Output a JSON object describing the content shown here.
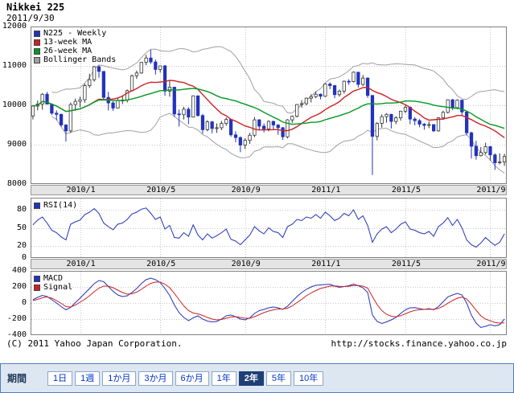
{
  "header": {
    "title": "Nikkei 225",
    "date": "2011/9/30"
  },
  "footer": {
    "copyright": "(C) 2011 Yahoo Japan Corporation.",
    "url": "http://stocks.finance.yahoo.co.jp"
  },
  "period_bar": {
    "label": "期間",
    "options": [
      "1日",
      "1週",
      "1か月",
      "3か月",
      "6か月",
      "1年",
      "2年",
      "5年",
      "10年"
    ],
    "selected": "2年"
  },
  "colors": {
    "candle_blue": "#2233bb",
    "ma13_red": "#cc2222",
    "ma26_green": "#009922",
    "bollinger_gray": "#a0a0a0",
    "link_blue": "#0033cc",
    "selected_navy": "#1f3f77",
    "bar_background": "#dde7f1",
    "bar_border": "#4f7cc0"
  },
  "chart_data": [
    {
      "type": "candlestick",
      "panel": "price",
      "legend": [
        {
          "label": "N225 - Weekly",
          "color": "#2233bb"
        },
        {
          "label": "13-week MA",
          "color": "#cc2222"
        },
        {
          "label": "26-week MA",
          "color": "#009922"
        },
        {
          "label": "Bollinger Bands",
          "color": "#a0a0a0"
        }
      ],
      "ylim": [
        8000,
        12000
      ],
      "yticks": [
        12000,
        11000,
        10000,
        9000,
        8000
      ],
      "xticks": [
        {
          "label": "2010/1",
          "week": 10
        },
        {
          "label": "2010/5",
          "week": 27
        },
        {
          "label": "2010/9",
          "week": 45
        },
        {
          "label": "2011/1",
          "week": 62
        },
        {
          "label": "2011/5",
          "week": 79
        },
        {
          "label": "2011/9",
          "week": 97
        }
      ],
      "candle_format": "[open, high, low, close]",
      "up_color": "#ffffff",
      "down_color": "#2233bb",
      "wick_color": "#333333",
      "ma_lines": [
        {
          "period": 13,
          "color": "#cc2222"
        },
        {
          "period": 26,
          "color": "#009922"
        }
      ],
      "bollinger": {
        "period": 20,
        "k": 2,
        "color": "#a0a0a0"
      },
      "candles": [
        [
          9730,
          10010,
          9640,
          9980
        ],
        [
          9980,
          10120,
          9870,
          10030
        ],
        [
          10030,
          10310,
          9890,
          10280
        ],
        [
          10280,
          10340,
          10020,
          10030
        ],
        [
          10030,
          10050,
          9750,
          9800
        ],
        [
          9800,
          9870,
          9620,
          9770
        ],
        [
          9770,
          9790,
          9450,
          9500
        ],
        [
          9500,
          9520,
          9080,
          9350
        ],
        [
          9350,
          10070,
          9300,
          10020
        ],
        [
          10020,
          10170,
          9860,
          10100
        ],
        [
          10100,
          10220,
          9950,
          10140
        ],
        [
          10140,
          10550,
          10060,
          10500
        ],
        [
          10500,
          10800,
          10440,
          10650
        ],
        [
          10650,
          11000,
          10600,
          10980
        ],
        [
          10980,
          11010,
          10700,
          10860
        ],
        [
          10860,
          10870,
          10150,
          10200
        ],
        [
          10200,
          10340,
          9870,
          10060
        ],
        [
          10060,
          10100,
          9860,
          9930
        ],
        [
          9930,
          10180,
          9920,
          10120
        ],
        [
          10120,
          10250,
          10030,
          10130
        ],
        [
          10130,
          10400,
          10070,
          10370
        ],
        [
          10370,
          10780,
          10350,
          10750
        ],
        [
          10750,
          10880,
          10670,
          10820
        ],
        [
          10820,
          11100,
          10800,
          11090
        ],
        [
          11090,
          11280,
          11020,
          11200
        ],
        [
          11200,
          11410,
          11050,
          11100
        ],
        [
          11100,
          11160,
          10780,
          10910
        ],
        [
          10910,
          11010,
          10830,
          11000
        ],
        [
          11000,
          11020,
          10240,
          10360
        ],
        [
          10360,
          10640,
          10220,
          10460
        ],
        [
          10460,
          10470,
          9700,
          9780
        ],
        [
          9780,
          9890,
          9460,
          9760
        ],
        [
          9760,
          9960,
          9640,
          9900
        ],
        [
          9900,
          9950,
          9520,
          9700
        ],
        [
          9700,
          10250,
          9690,
          10240
        ],
        [
          10240,
          10250,
          9710,
          9740
        ],
        [
          9740,
          9780,
          9280,
          9380
        ],
        [
          9380,
          9620,
          9340,
          9580
        ],
        [
          9580,
          9600,
          9290,
          9410
        ],
        [
          9410,
          9540,
          9300,
          9430
        ],
        [
          9430,
          9600,
          9370,
          9540
        ],
        [
          9540,
          9690,
          9480,
          9640
        ],
        [
          9640,
          9650,
          9200,
          9250
        ],
        [
          9250,
          9340,
          9060,
          9180
        ],
        [
          9180,
          9210,
          8810,
          8990
        ],
        [
          8990,
          9160,
          8890,
          9110
        ],
        [
          9110,
          9300,
          9020,
          9240
        ],
        [
          9240,
          9700,
          9190,
          9630
        ],
        [
          9630,
          9650,
          9380,
          9470
        ],
        [
          9470,
          9540,
          9310,
          9400
        ],
        [
          9400,
          9620,
          9340,
          9590
        ],
        [
          9590,
          9610,
          9380,
          9500
        ],
        [
          9500,
          9520,
          9250,
          9430
        ],
        [
          9430,
          9450,
          9120,
          9200
        ],
        [
          9200,
          9650,
          9160,
          9630
        ],
        [
          9630,
          9740,
          9550,
          9720
        ],
        [
          9720,
          10030,
          9690,
          10020
        ],
        [
          10020,
          10130,
          9940,
          10040
        ],
        [
          10040,
          10200,
          10000,
          10180
        ],
        [
          10180,
          10280,
          10070,
          10220
        ],
        [
          10220,
          10350,
          10180,
          10280
        ],
        [
          10280,
          10300,
          10150,
          10230
        ],
        [
          10230,
          10560,
          10210,
          10540
        ],
        [
          10540,
          10580,
          10410,
          10500
        ],
        [
          10500,
          10520,
          10180,
          10270
        ],
        [
          10270,
          10400,
          10220,
          10360
        ],
        [
          10360,
          10630,
          10300,
          10610
        ],
        [
          10610,
          10660,
          10520,
          10600
        ],
        [
          10600,
          10860,
          10580,
          10840
        ],
        [
          10840,
          10850,
          10450,
          10530
        ],
        [
          10530,
          10770,
          10490,
          10690
        ],
        [
          10690,
          10710,
          10190,
          10250
        ],
        [
          10250,
          10260,
          8230,
          9210
        ],
        [
          9210,
          9570,
          9110,
          9540
        ],
        [
          9540,
          9770,
          9430,
          9710
        ],
        [
          9710,
          9800,
          9560,
          9770
        ],
        [
          9770,
          9780,
          9410,
          9590
        ],
        [
          9590,
          9720,
          9520,
          9680
        ],
        [
          9680,
          9860,
          9610,
          9850
        ],
        [
          9850,
          10020,
          9800,
          9950
        ],
        [
          9950,
          9970,
          9520,
          9650
        ],
        [
          9650,
          9700,
          9490,
          9610
        ],
        [
          9610,
          9650,
          9440,
          9520
        ],
        [
          9520,
          9550,
          9380,
          9490
        ],
        [
          9490,
          9590,
          9420,
          9510
        ],
        [
          9510,
          9520,
          9320,
          9350
        ],
        [
          9350,
          9700,
          9330,
          9680
        ],
        [
          9680,
          9860,
          9630,
          9820
        ],
        [
          9820,
          10150,
          9790,
          10140
        ],
        [
          10140,
          10160,
          9880,
          9940
        ],
        [
          9940,
          10150,
          9900,
          10130
        ],
        [
          10130,
          10140,
          9750,
          9830
        ],
        [
          9830,
          9840,
          9240,
          9300
        ],
        [
          9300,
          9330,
          8650,
          8960
        ],
        [
          8960,
          9100,
          8620,
          8720
        ],
        [
          8720,
          8940,
          8700,
          8800
        ],
        [
          8800,
          9050,
          8750,
          8950
        ],
        [
          8950,
          8960,
          8590,
          8740
        ],
        [
          8740,
          8780,
          8360,
          8540
        ],
        [
          8540,
          8780,
          8500,
          8560
        ],
        [
          8560,
          8770,
          8460,
          8700
        ]
      ]
    },
    {
      "type": "line",
      "panel": "rsi",
      "legend": [
        {
          "label": "RSI(14)",
          "color": "#2233bb"
        }
      ],
      "ylim": [
        0,
        100
      ],
      "yticks": [
        80,
        50,
        20,
        0
      ],
      "series": [
        {
          "name": "RSI(14)",
          "color": "#2233bb",
          "values": [
            55,
            63,
            68,
            58,
            46,
            42,
            35,
            30,
            56,
            60,
            63,
            72,
            76,
            82,
            74,
            58,
            52,
            47,
            56,
            58,
            64,
            73,
            76,
            81,
            83,
            74,
            64,
            68,
            48,
            54,
            34,
            33,
            42,
            36,
            55,
            38,
            30,
            40,
            33,
            37,
            42,
            48,
            31,
            28,
            22,
            30,
            38,
            52,
            45,
            40,
            50,
            44,
            42,
            34,
            52,
            56,
            64,
            62,
            68,
            66,
            72,
            66,
            76,
            70,
            62,
            66,
            74,
            70,
            80,
            64,
            70,
            54,
            26,
            40,
            48,
            52,
            42,
            48,
            56,
            60,
            48,
            46,
            42,
            40,
            44,
            36,
            52,
            58,
            67,
            54,
            64,
            50,
            30,
            22,
            18,
            25,
            34,
            27,
            21,
            26,
            40
          ]
        }
      ]
    },
    {
      "type": "line",
      "panel": "macd",
      "legend": [
        {
          "label": "MACD",
          "color": "#2233bb"
        },
        {
          "label": "Signal",
          "color": "#cc2222"
        }
      ],
      "ylim": [
        -400,
        400
      ],
      "yticks": [
        400,
        200,
        0,
        -200,
        -400
      ],
      "series": [
        {
          "name": "MACD",
          "color": "#2233bb",
          "values": [
            40,
            70,
            95,
            80,
            40,
            0,
            -45,
            -85,
            -55,
            5,
            60,
            120,
            180,
            240,
            280,
            265,
            205,
            145,
            100,
            80,
            90,
            130,
            180,
            240,
            290,
            310,
            290,
            255,
            180,
            95,
            -25,
            -120,
            -180,
            -220,
            -185,
            -160,
            -200,
            -225,
            -235,
            -230,
            -200,
            -160,
            -150,
            -170,
            -200,
            -210,
            -185,
            -130,
            -95,
            -80,
            -60,
            -50,
            -60,
            -80,
            -40,
            20,
            80,
            130,
            170,
            200,
            220,
            225,
            230,
            232,
            210,
            195,
            205,
            215,
            235,
            215,
            190,
            130,
            -150,
            -230,
            -255,
            -235,
            -210,
            -180,
            -130,
            -85,
            -60,
            -58,
            -70,
            -80,
            -70,
            -85,
            -45,
            15,
            75,
            100,
            120,
            100,
            0,
            -150,
            -250,
            -305,
            -290,
            -270,
            -285,
            -270,
            -200
          ]
        },
        {
          "name": "Signal",
          "color": "#cc2222",
          "values": [
            30,
            45,
            65,
            75,
            60,
            30,
            -5,
            -45,
            -50,
            -25,
            10,
            45,
            90,
            140,
            185,
            210,
            210,
            190,
            160,
            130,
            110,
            115,
            135,
            170,
            210,
            245,
            260,
            260,
            235,
            190,
            120,
            40,
            -35,
            -95,
            -125,
            -135,
            -155,
            -180,
            -200,
            -210,
            -205,
            -190,
            -175,
            -170,
            -180,
            -190,
            -190,
            -170,
            -145,
            -120,
            -100,
            -85,
            -75,
            -75,
            -65,
            -35,
            5,
            45,
            90,
            125,
            155,
            180,
            195,
            210,
            212,
            207,
            205,
            208,
            217,
            217,
            210,
            185,
            80,
            -20,
            -95,
            -140,
            -165,
            -170,
            -158,
            -135,
            -110,
            -92,
            -83,
            -80,
            -77,
            -79,
            -68,
            -40,
            -3,
            30,
            60,
            73,
            50,
            -15,
            -90,
            -160,
            -200,
            -222,
            -242,
            -250,
            -248
          ]
        }
      ]
    }
  ]
}
